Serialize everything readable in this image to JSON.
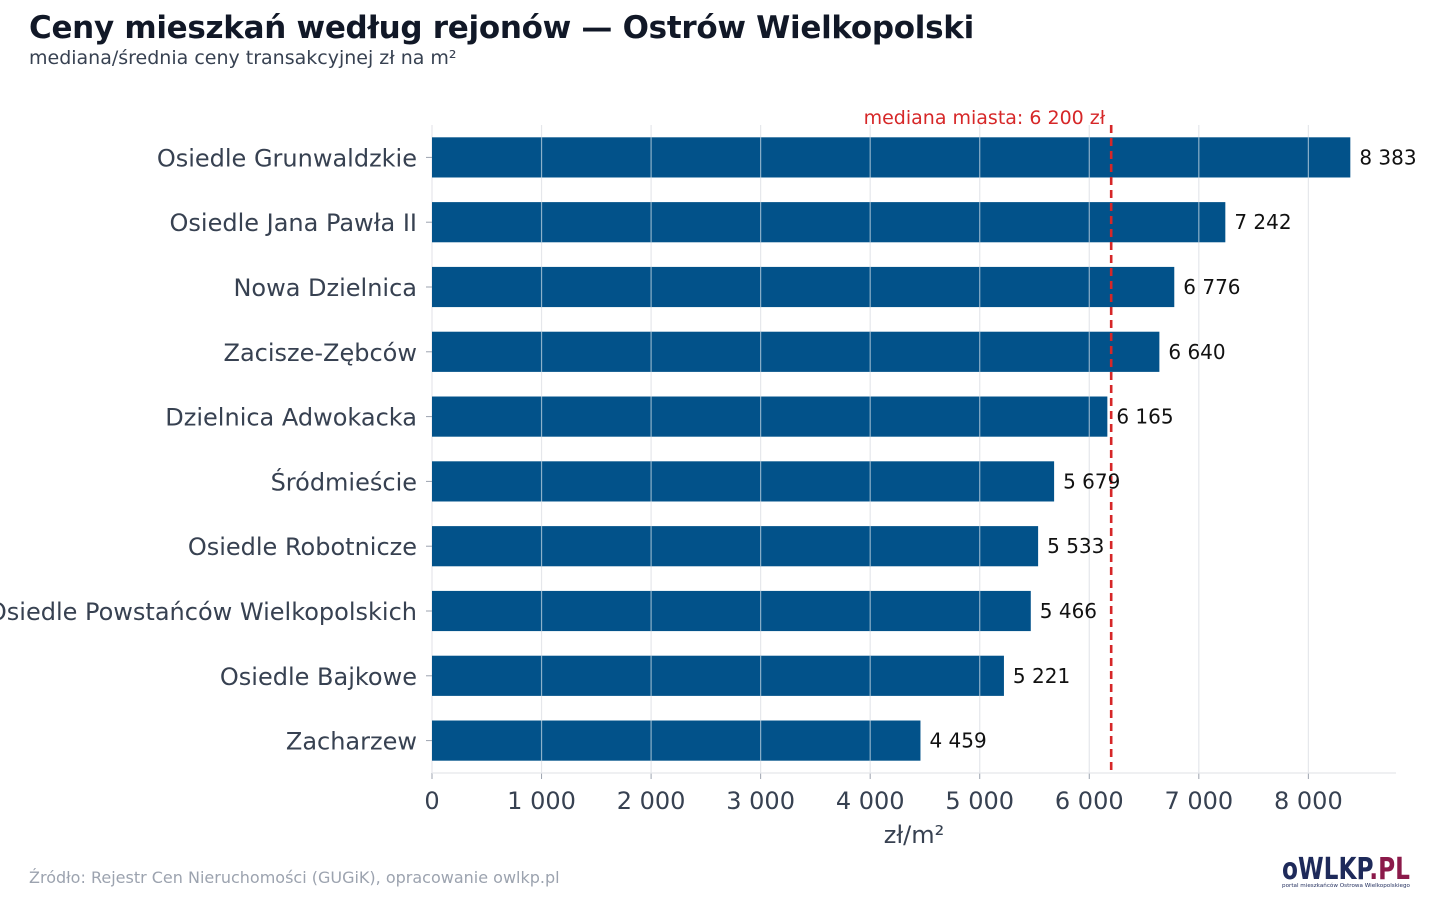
{
  "chart_data": {
    "type": "bar",
    "orientation": "horizontal",
    "title": "Ceny mieszkań według rejonów — Ostrów Wielkopolski",
    "subtitle": "mediana/średnia ceny transakcyjnej zł na m²",
    "categories": [
      "Osiedle Grunwaldzkie",
      "Osiedle Jana Pawła II",
      "Nowa Dzielnica",
      "Zacisze-Zębców",
      "Dzielnica Adwokacka",
      "Śródmieście",
      "Osiedle Robotnicze",
      "Osiedle Powstańców Wielkopolskich",
      "Osiedle Bajkowe",
      "Zacharzew"
    ],
    "values": [
      8383,
      7242,
      6776,
      6640,
      6165,
      5679,
      5533,
      5466,
      5221,
      4459
    ],
    "value_labels": [
      "8 383",
      "7 242",
      "6 776",
      "6 640",
      "6 165",
      "5 679",
      "5 533",
      "5 466",
      "5 221",
      "4 459"
    ],
    "xlabel": "zł/m²",
    "ylabel": "",
    "xlim": [
      0,
      8800
    ],
    "xticks": [
      0,
      1000,
      2000,
      3000,
      4000,
      5000,
      6000,
      7000,
      8000
    ],
    "xtick_labels": [
      "0",
      "1 000",
      "2 000",
      "3 000",
      "4 000",
      "5 000",
      "6 000",
      "7 000",
      "8 000"
    ],
    "grid": "vertical",
    "reference_line": {
      "value": 6200,
      "label": "mediana miasta: 6 200 zł",
      "color": "#d62728",
      "style": "dashed"
    },
    "bar_color": "#02528a",
    "grid_color": "#e5e7eb",
    "source": "Źródło: Rejestr Cen Nieruchomości (GUGiK), opracowanie owlkp.pl"
  },
  "logo": {
    "main": "oWLKP",
    "accent": ".PL",
    "tagline": "portal mieszkańców Ostrowa Wielkopolskiego",
    "color_main": "#1e2a5a",
    "color_accent": "#8b1a4a"
  }
}
